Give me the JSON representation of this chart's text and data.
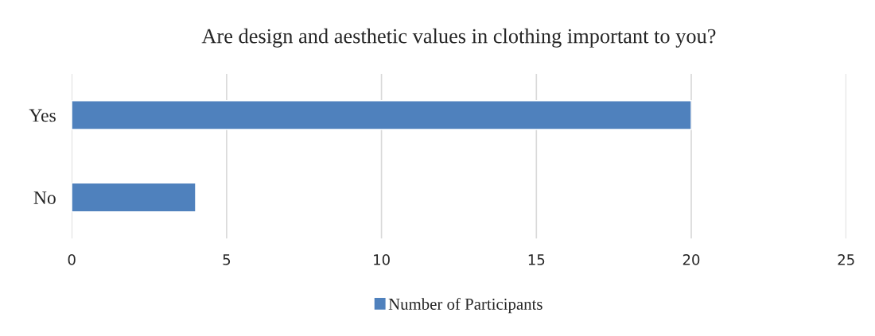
{
  "chart_data": {
    "type": "bar",
    "orientation": "horizontal",
    "title": "Are design and aesthetic values in clothing important to you?",
    "categories": [
      "Yes",
      "No"
    ],
    "series": [
      {
        "name": "Number of Participants",
        "color": "#4f81bd",
        "values": [
          20,
          4
        ]
      }
    ],
    "xlim": [
      0,
      25
    ],
    "xticks": [
      0,
      5,
      10,
      15,
      20,
      25
    ],
    "grid": "x",
    "legend": "bottom"
  }
}
